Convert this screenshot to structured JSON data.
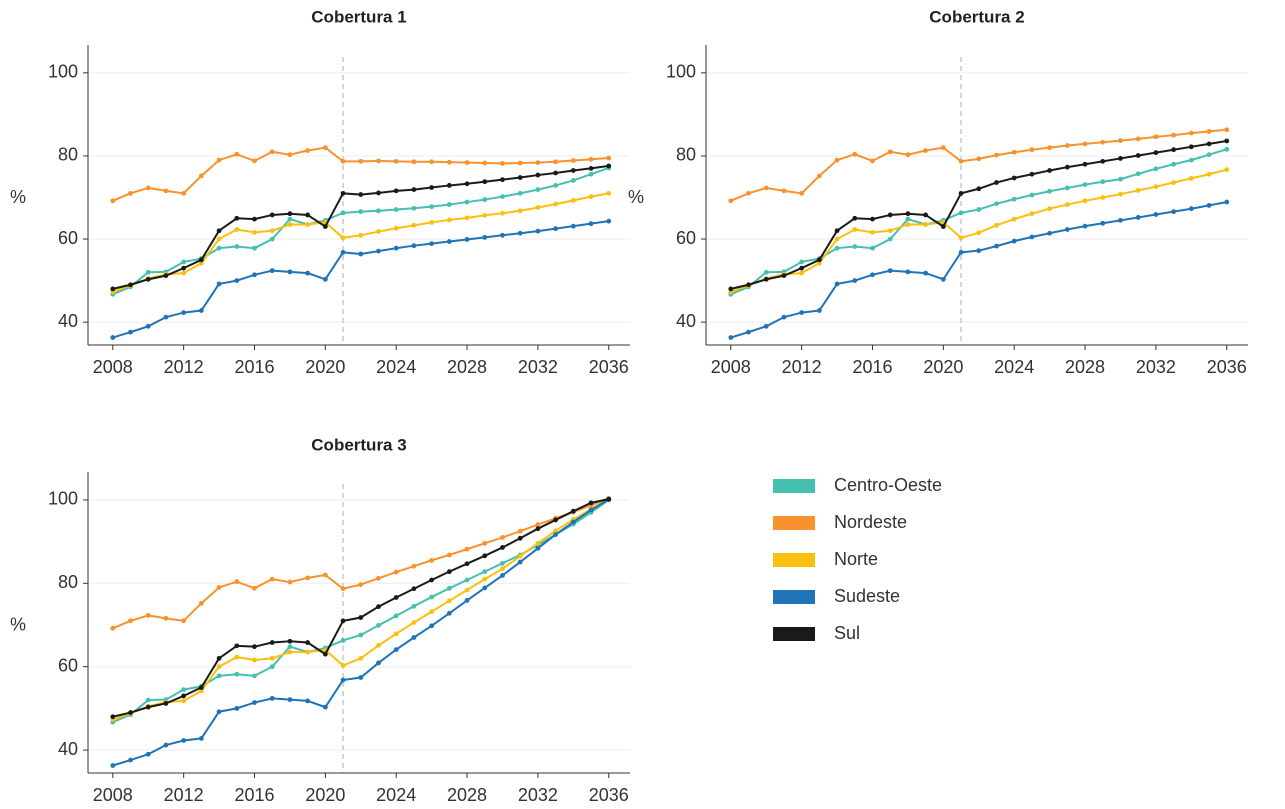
{
  "chart_data": [
    {
      "type": "line",
      "title": "Cobertura 1",
      "y_label": "%",
      "x": [
        2008,
        2009,
        2010,
        2011,
        2012,
        2013,
        2014,
        2015,
        2016,
        2017,
        2018,
        2019,
        2020,
        2021,
        2022,
        2023,
        2024,
        2025,
        2026,
        2027,
        2028,
        2029,
        2030,
        2031,
        2032,
        2033,
        2034,
        2035,
        2036
      ],
      "xlim": [
        2006.6,
        2037.2
      ],
      "xticks": [
        2008,
        2012,
        2016,
        2020,
        2024,
        2028,
        2032,
        2036
      ],
      "ylim": [
        34.5,
        106.7
      ],
      "yticks": [
        40,
        60,
        80,
        100
      ],
      "grid": true,
      "vline": 2021,
      "series": [
        {
          "name": "Centro-Oeste",
          "color": "#45bfb0",
          "values": [
            46.7,
            48.5,
            52.0,
            52.1,
            54.5,
            55.3,
            57.8,
            58.2,
            57.8,
            60.0,
            64.8,
            63.5,
            64.5,
            66.3,
            66.6,
            66.8,
            67.1,
            67.4,
            67.8,
            68.3,
            68.9,
            69.5,
            70.2,
            71.0,
            71.9,
            72.9,
            74.1,
            75.6,
            77.1
          ]
        },
        {
          "name": "Nordeste",
          "color": "#f7922e",
          "values": [
            69.2,
            71.0,
            72.3,
            71.6,
            71.0,
            75.2,
            79.0,
            80.4,
            78.8,
            81.0,
            80.3,
            81.3,
            82.0,
            78.7,
            78.7,
            78.8,
            78.7,
            78.6,
            78.6,
            78.5,
            78.4,
            78.3,
            78.2,
            78.3,
            78.4,
            78.6,
            78.9,
            79.2,
            79.5
          ]
        },
        {
          "name": "Norte",
          "color": "#f9c010",
          "values": [
            47.3,
            48.8,
            50.5,
            51.5,
            51.8,
            54.2,
            60.0,
            62.3,
            61.6,
            62.0,
            63.5,
            63.5,
            64.0,
            60.3,
            60.9,
            61.8,
            62.6,
            63.3,
            64.0,
            64.6,
            65.1,
            65.7,
            66.2,
            66.8,
            67.6,
            68.4,
            69.3,
            70.2,
            71.0
          ]
        },
        {
          "name": "Sudeste",
          "color": "#1f73b8",
          "values": [
            36.3,
            37.6,
            39.0,
            41.2,
            42.3,
            42.8,
            49.2,
            50.0,
            51.4,
            52.4,
            52.1,
            51.8,
            50.3,
            56.8,
            56.4,
            57.1,
            57.8,
            58.4,
            58.9,
            59.4,
            59.9,
            60.4,
            60.9,
            61.4,
            61.9,
            62.5,
            63.1,
            63.7,
            64.3
          ]
        },
        {
          "name": "Sul",
          "color": "#1a1a1a",
          "values": [
            48.0,
            49.0,
            50.3,
            51.2,
            53.0,
            55.0,
            62.0,
            65.0,
            64.8,
            65.8,
            66.1,
            65.8,
            63.0,
            71.0,
            70.7,
            71.1,
            71.6,
            71.9,
            72.4,
            72.9,
            73.3,
            73.8,
            74.3,
            74.8,
            75.4,
            75.9,
            76.5,
            77.0,
            77.6
          ]
        }
      ]
    },
    {
      "type": "line",
      "title": "Cobertura 2",
      "y_label": "%",
      "x": [
        2008,
        2009,
        2010,
        2011,
        2012,
        2013,
        2014,
        2015,
        2016,
        2017,
        2018,
        2019,
        2020,
        2021,
        2022,
        2023,
        2024,
        2025,
        2026,
        2027,
        2028,
        2029,
        2030,
        2031,
        2032,
        2033,
        2034,
        2035,
        2036
      ],
      "xlim": [
        2006.6,
        2037.2
      ],
      "xticks": [
        2008,
        2012,
        2016,
        2020,
        2024,
        2028,
        2032,
        2036
      ],
      "ylim": [
        34.5,
        106.7
      ],
      "yticks": [
        40,
        60,
        80,
        100
      ],
      "grid": true,
      "vline": 2021,
      "series": [
        {
          "name": "Centro-Oeste",
          "color": "#45bfb0",
          "values": [
            46.7,
            48.5,
            52.0,
            52.1,
            54.5,
            55.3,
            57.8,
            58.2,
            57.8,
            60.0,
            64.8,
            63.5,
            64.5,
            66.3,
            67.1,
            68.5,
            69.6,
            70.6,
            71.5,
            72.3,
            73.1,
            73.8,
            74.4,
            75.7,
            76.9,
            78.0,
            79.0,
            80.3,
            81.6
          ]
        },
        {
          "name": "Nordeste",
          "color": "#f7922e",
          "values": [
            69.2,
            71.0,
            72.3,
            71.6,
            71.0,
            75.2,
            79.0,
            80.4,
            78.8,
            81.0,
            80.3,
            81.3,
            82.0,
            78.7,
            79.3,
            80.2,
            80.9,
            81.5,
            82.0,
            82.5,
            82.9,
            83.3,
            83.7,
            84.1,
            84.6,
            85.0,
            85.5,
            85.9,
            86.3
          ]
        },
        {
          "name": "Norte",
          "color": "#f9c010",
          "values": [
            47.3,
            48.8,
            50.5,
            51.5,
            51.8,
            54.2,
            60.0,
            62.3,
            61.6,
            62.0,
            63.5,
            63.5,
            64.0,
            60.3,
            61.5,
            63.3,
            64.8,
            66.1,
            67.3,
            68.3,
            69.2,
            70.0,
            70.8,
            71.7,
            72.6,
            73.6,
            74.6,
            75.6,
            76.7
          ]
        },
        {
          "name": "Sudeste",
          "color": "#1f73b8",
          "values": [
            36.3,
            37.6,
            39.0,
            41.2,
            42.3,
            42.8,
            49.2,
            50.0,
            51.4,
            52.4,
            52.1,
            51.8,
            50.3,
            56.8,
            57.2,
            58.3,
            59.5,
            60.5,
            61.4,
            62.3,
            63.1,
            63.8,
            64.5,
            65.2,
            65.9,
            66.6,
            67.3,
            68.1,
            68.9
          ]
        },
        {
          "name": "Sul",
          "color": "#1a1a1a",
          "values": [
            48.0,
            49.0,
            50.3,
            51.2,
            53.0,
            55.0,
            62.0,
            65.0,
            64.8,
            65.8,
            66.1,
            65.8,
            63.0,
            71.0,
            72.1,
            73.6,
            74.7,
            75.6,
            76.5,
            77.3,
            78.0,
            78.7,
            79.4,
            80.1,
            80.8,
            81.5,
            82.2,
            82.9,
            83.6
          ]
        }
      ]
    },
    {
      "type": "line",
      "title": "Cobertura 3",
      "y_label": "%",
      "x": [
        2008,
        2009,
        2010,
        2011,
        2012,
        2013,
        2014,
        2015,
        2016,
        2017,
        2018,
        2019,
        2020,
        2021,
        2022,
        2023,
        2024,
        2025,
        2026,
        2027,
        2028,
        2029,
        2030,
        2031,
        2032,
        2033,
        2034,
        2035,
        2036
      ],
      "xlim": [
        2006.6,
        2037.2
      ],
      "xticks": [
        2008,
        2012,
        2016,
        2020,
        2024,
        2028,
        2032,
        2036
      ],
      "ylim": [
        34.5,
        106.7
      ],
      "yticks": [
        40,
        60,
        80,
        100
      ],
      "grid": true,
      "vline": 2021,
      "series": [
        {
          "name": "Centro-Oeste",
          "color": "#45bfb0",
          "values": [
            46.7,
            48.5,
            52.0,
            52.1,
            54.5,
            55.3,
            57.8,
            58.2,
            57.8,
            60.0,
            64.8,
            63.5,
            64.5,
            66.3,
            67.6,
            69.9,
            72.2,
            74.5,
            76.7,
            78.8,
            80.8,
            82.8,
            84.8,
            86.8,
            89.2,
            91.7,
            94.2,
            97.0,
            100.0
          ]
        },
        {
          "name": "Nordeste",
          "color": "#f7922e",
          "values": [
            69.2,
            71.0,
            72.3,
            71.6,
            71.0,
            75.2,
            79.0,
            80.4,
            78.8,
            81.0,
            80.3,
            81.3,
            82.0,
            78.7,
            79.7,
            81.2,
            82.7,
            84.1,
            85.5,
            86.8,
            88.2,
            89.6,
            91.0,
            92.5,
            94.1,
            95.6,
            97.1,
            98.7,
            100.4
          ]
        },
        {
          "name": "Norte",
          "color": "#f9c010",
          "values": [
            47.3,
            48.8,
            50.5,
            51.5,
            51.8,
            54.2,
            60.0,
            62.3,
            61.6,
            62.0,
            63.5,
            63.5,
            64.0,
            60.3,
            62.0,
            65.1,
            67.9,
            70.6,
            73.2,
            75.8,
            78.4,
            81.0,
            83.5,
            86.5,
            89.6,
            92.6,
            95.3,
            97.8,
            100.2
          ]
        },
        {
          "name": "Sudeste",
          "color": "#1f73b8",
          "values": [
            36.3,
            37.6,
            39.0,
            41.2,
            42.3,
            42.8,
            49.2,
            50.0,
            51.4,
            52.4,
            52.1,
            51.8,
            50.3,
            56.8,
            57.4,
            60.9,
            64.1,
            67.0,
            69.8,
            72.8,
            75.9,
            78.9,
            81.9,
            85.1,
            88.4,
            91.7,
            94.7,
            97.6,
            100.1
          ]
        },
        {
          "name": "Sul",
          "color": "#1a1a1a",
          "values": [
            48.0,
            49.0,
            50.3,
            51.2,
            53.0,
            55.0,
            62.0,
            65.0,
            64.8,
            65.8,
            66.1,
            65.8,
            63.0,
            71.0,
            71.8,
            74.4,
            76.6,
            78.7,
            80.8,
            82.8,
            84.7,
            86.6,
            88.6,
            90.8,
            93.1,
            95.2,
            97.3,
            99.3,
            100.2
          ]
        }
      ]
    }
  ]
}
